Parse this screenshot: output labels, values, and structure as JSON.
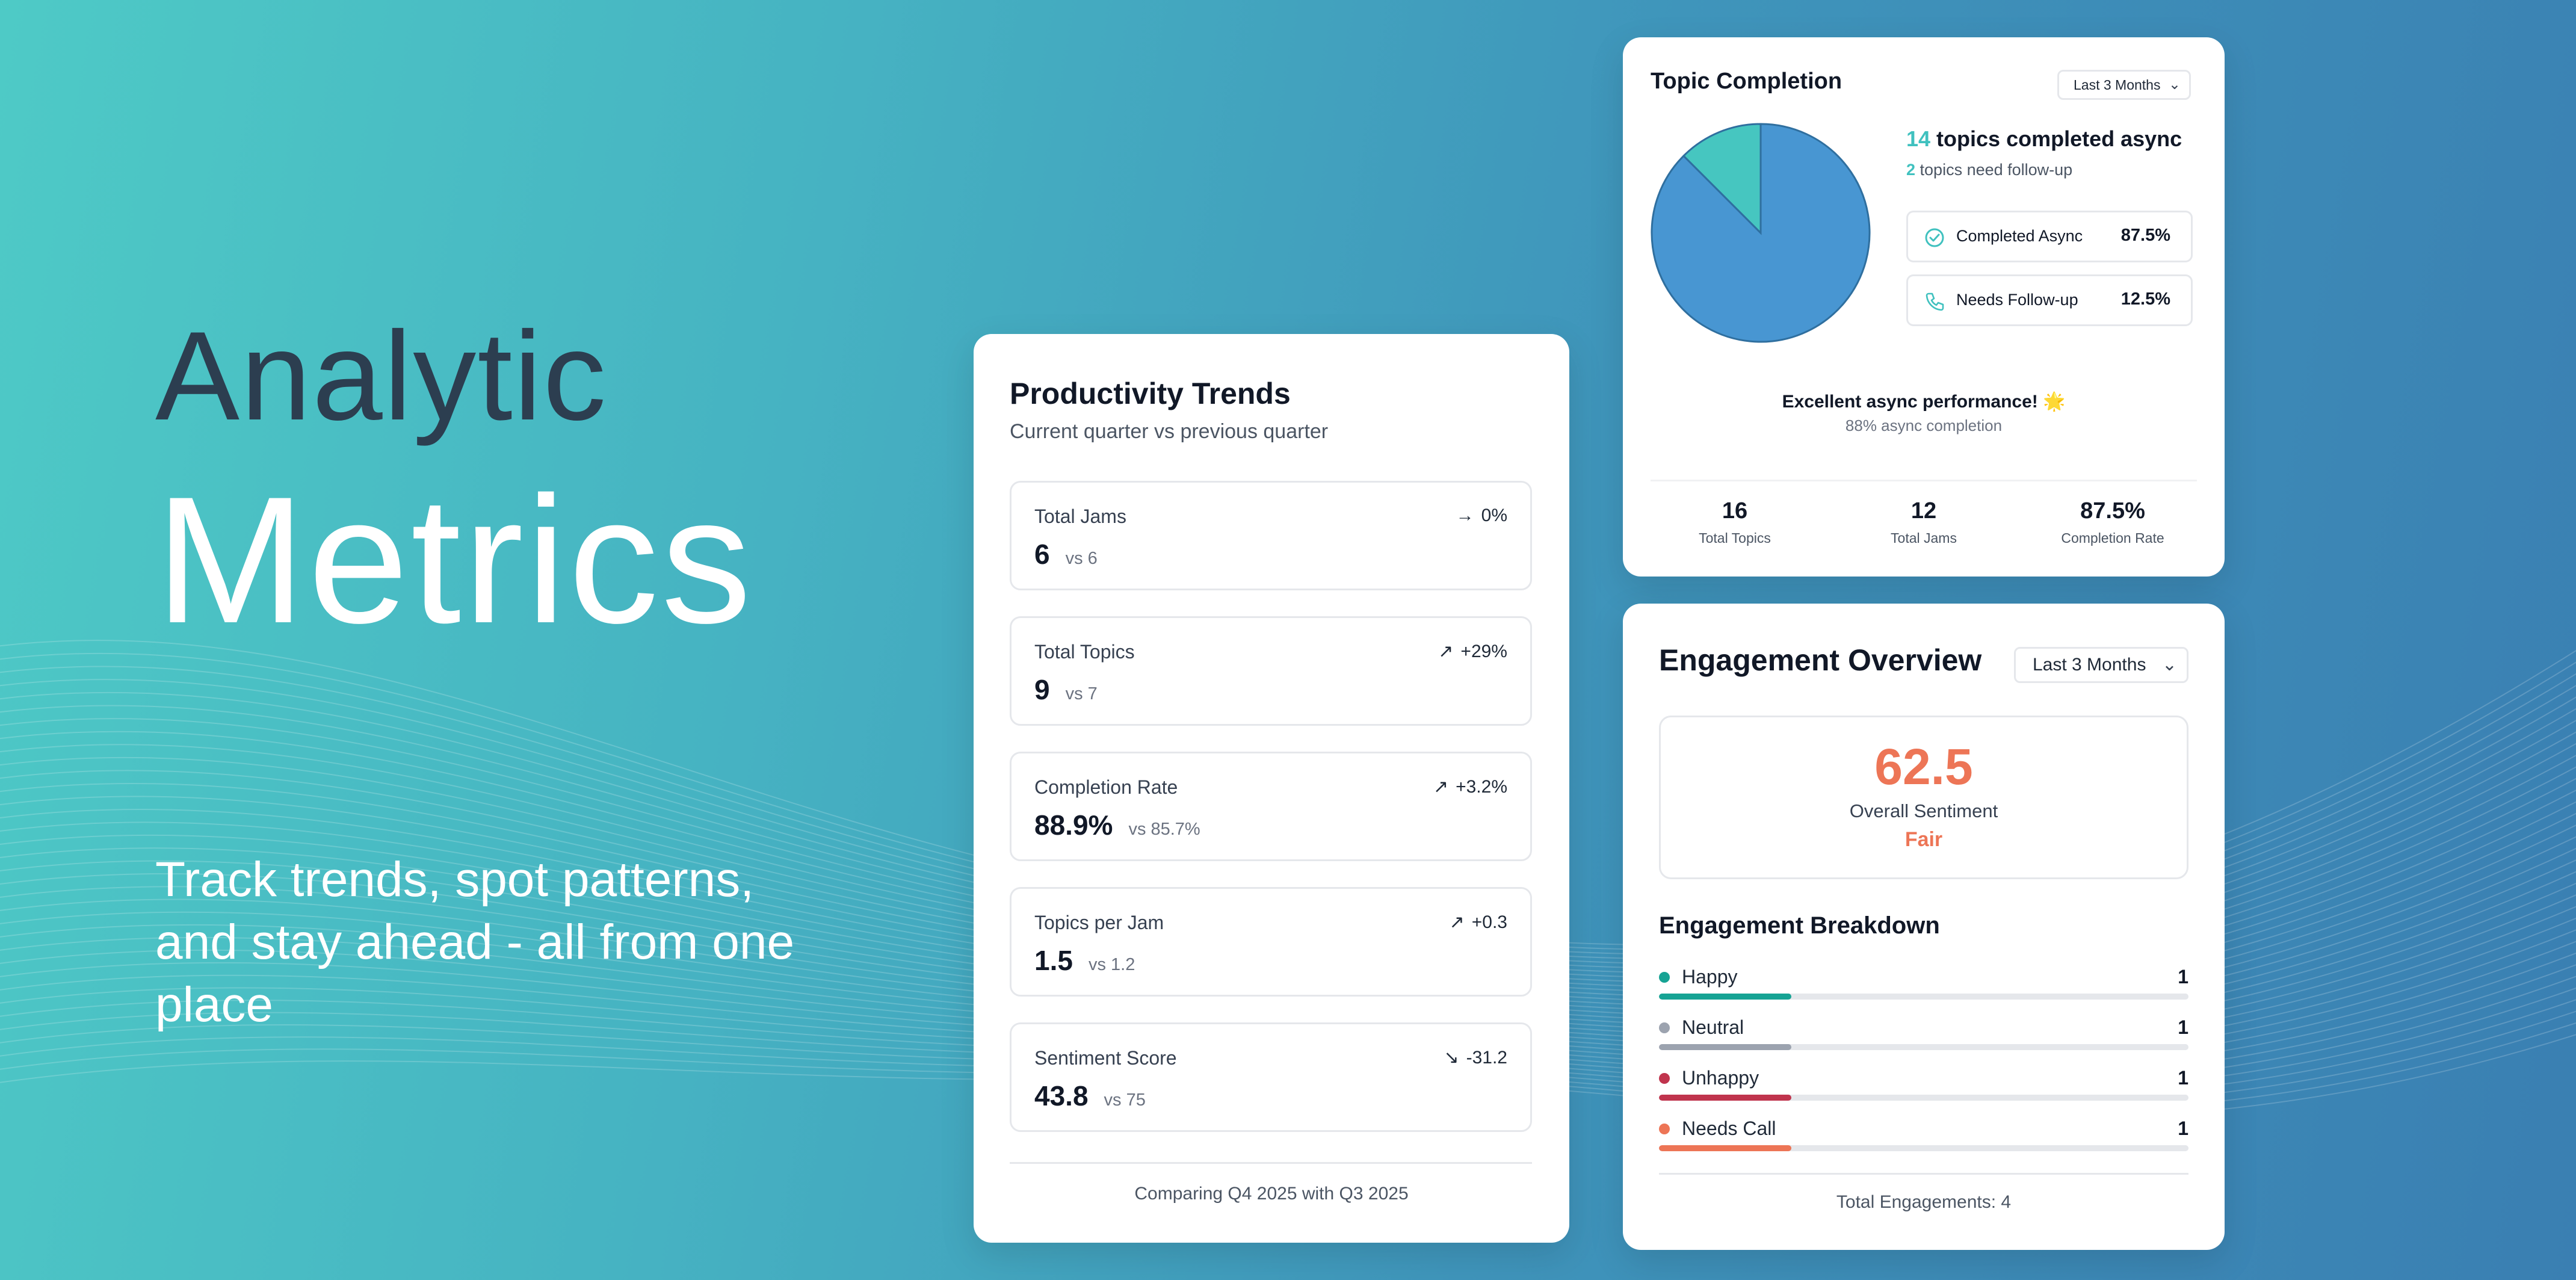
{
  "hero": {
    "title_line1": "Analytic",
    "title_line2": "Metrics",
    "subtitle": "Track trends, spot patterns, and stay ahead - all from one place"
  },
  "productivity": {
    "title": "Productivity Trends",
    "subtitle": "Current quarter vs previous quarter",
    "metrics": [
      {
        "label": "Total Jams",
        "value": "6",
        "previous": "vs 6",
        "change": "0%",
        "trend_icon": "arrow-right-icon",
        "arrow": "→"
      },
      {
        "label": "Total Topics",
        "value": "9",
        "previous": "vs 7",
        "change": "+29%",
        "trend_icon": "arrow-up-right-icon",
        "arrow": "↗"
      },
      {
        "label": "Completion Rate",
        "value": "88.9%",
        "previous": "vs 85.7%",
        "change": "+3.2%",
        "trend_icon": "arrow-up-right-icon",
        "arrow": "↗"
      },
      {
        "label": "Topics per Jam",
        "value": "1.5",
        "previous": "vs 1.2",
        "change": "+0.3",
        "trend_icon": "arrow-up-right-icon",
        "arrow": "↗"
      },
      {
        "label": "Sentiment Score",
        "value": "43.8",
        "previous": "vs 75",
        "change": "-31.2",
        "trend_icon": "arrow-down-right-icon",
        "arrow": "↘"
      }
    ],
    "footer": "Comparing Q4 2025 with Q3 2025"
  },
  "topic_completion": {
    "title": "Topic Completion",
    "range_select": "Last 3 Months",
    "headline_count": "14",
    "headline_text": " topics completed async",
    "followup_count": "2",
    "followup_text": " topics need follow-up",
    "legend": [
      {
        "label": "Completed Async",
        "percent": "87.5%",
        "icon": "check-circle-icon"
      },
      {
        "label": "Needs Follow-up",
        "percent": "12.5%",
        "icon": "phone-icon"
      }
    ],
    "performance": "Excellent async performance! 🌟",
    "performance_sub": "88% async completion",
    "stats": [
      {
        "value": "16",
        "label": "Total Topics"
      },
      {
        "value": "12",
        "label": "Total Jams"
      },
      {
        "value": "87.5%",
        "label": "Completion Rate"
      }
    ],
    "colors": {
      "completed": "#4896d2",
      "followup": "#46c6c0",
      "accent": "#40c1bf"
    }
  },
  "chart_data": {
    "type": "pie",
    "categories": [
      "Completed Async",
      "Needs Follow-up"
    ],
    "values": [
      87.5,
      12.5
    ],
    "title": "",
    "legend": "right"
  },
  "engagement": {
    "title": "Engagement Overview",
    "range_select": "Last 3 Months",
    "score": "62.5",
    "score_label": "Overall Sentiment",
    "score_rating": "Fair",
    "breakdown_title": "Engagement Breakdown",
    "items": [
      {
        "label": "Happy",
        "count": "1",
        "share": 0.25,
        "color": "#16a394"
      },
      {
        "label": "Neutral",
        "count": "1",
        "share": 0.25,
        "color": "#9ca3af"
      },
      {
        "label": "Unhappy",
        "count": "1",
        "share": 0.25,
        "color": "#c0344d"
      },
      {
        "label": "Needs Call",
        "count": "1",
        "share": 0.25,
        "color": "#ed7556"
      }
    ],
    "total": "Total Engagements: 4",
    "colors": {
      "score": "#ed7556"
    }
  }
}
